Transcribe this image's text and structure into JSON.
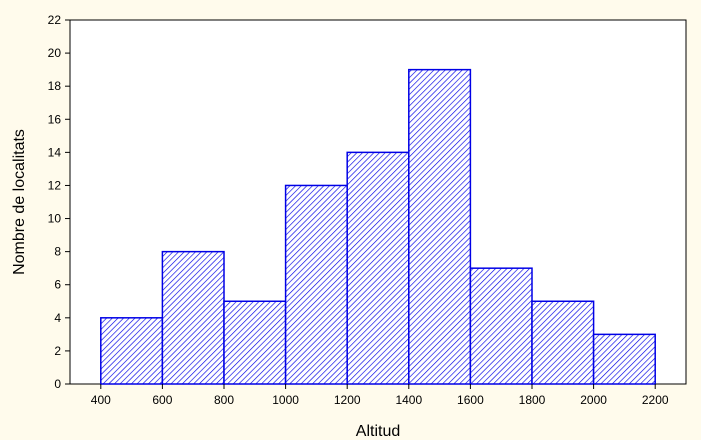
{
  "chart_data": {
    "type": "bar",
    "title": "",
    "xlabel": "Altitud",
    "ylabel": "Nombre de localitats",
    "bin_edges": [
      400,
      600,
      800,
      1000,
      1200,
      1400,
      1600,
      1800,
      2000,
      2200
    ],
    "values": [
      4,
      8,
      5,
      12,
      14,
      19,
      7,
      5,
      3
    ],
    "xlim": [
      300,
      2300
    ],
    "ylim": [
      0,
      22
    ],
    "x_ticks": [
      400,
      600,
      800,
      1000,
      1200,
      1400,
      1600,
      1800,
      2000,
      2200
    ],
    "y_ticks": [
      0,
      2,
      4,
      6,
      8,
      10,
      12,
      14,
      16,
      18,
      20,
      22
    ],
    "grid": false,
    "legend": "none",
    "colors": {
      "background": "#FFFBEC",
      "plot_area": "#FFFFFF",
      "bar_stroke": "#0000E6",
      "bar_hatch": "#0000E6",
      "axis": "#000000"
    }
  }
}
